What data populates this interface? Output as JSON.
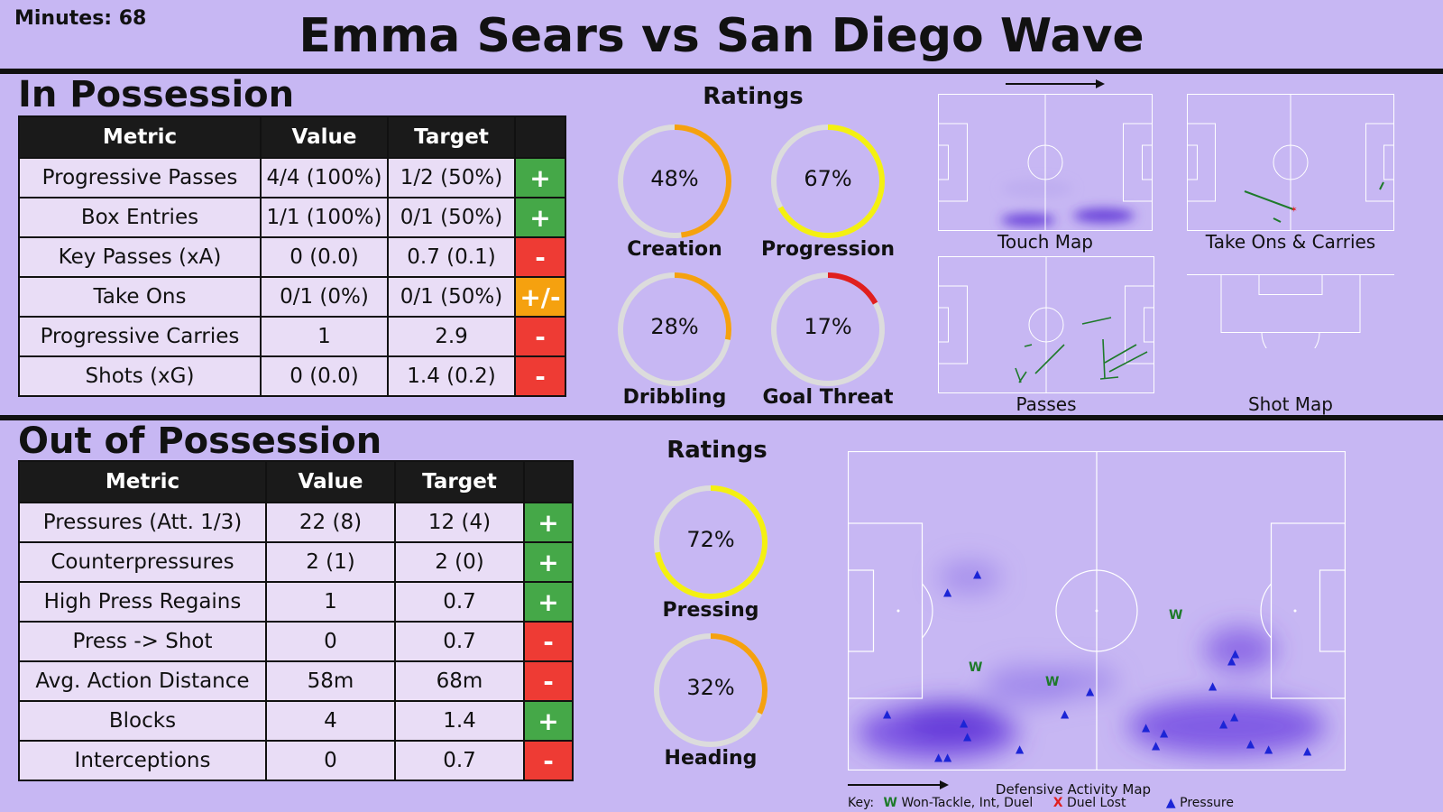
{
  "header": {
    "minutes": "Minutes: 68",
    "title": "Emma Sears vs San Diego Wave"
  },
  "in_possession": {
    "title": "In Possession",
    "columns": [
      "Metric",
      "Value",
      "Target",
      ""
    ],
    "rows": [
      {
        "metric": "Progressive Passes",
        "value": "4/4 (100%)",
        "target": "1/2 (50%)",
        "mark": "+"
      },
      {
        "metric": "Box Entries",
        "value": "1/1 (100%)",
        "target": "0/1 (50%)",
        "mark": "+"
      },
      {
        "metric": "Key Passes (xA)",
        "value": "0 (0.0)",
        "target": "0.7 (0.1)",
        "mark": "-"
      },
      {
        "metric": "Take Ons",
        "value": "0/1 (0%)",
        "target": "0/1 (50%)",
        "mark": "+/-"
      },
      {
        "metric": "Progressive Carries",
        "value": "1",
        "target": "2.9",
        "mark": "-"
      },
      {
        "metric": "Shots (xG)",
        "value": "0 (0.0)",
        "target": "1.4 (0.2)",
        "mark": "-"
      }
    ],
    "ratings_title": "Ratings",
    "ratings": [
      {
        "label": "Creation",
        "value_text": "48%",
        "value": 48,
        "color": "#f5a10f"
      },
      {
        "label": "Progression",
        "value_text": "67%",
        "value": 67,
        "color": "#f4f011"
      },
      {
        "label": "Dribbling",
        "value_text": "28%",
        "value": 28,
        "color": "#f5a10f"
      },
      {
        "label": "Goal Threat",
        "value_text": "17%",
        "value": 17,
        "color": "#e01f1f"
      }
    ],
    "maps": {
      "touch": "Touch Map",
      "take_ons": "Take Ons & Carries",
      "passes": "Passes",
      "shots": "Shot Map"
    }
  },
  "out_of_possession": {
    "title": "Out of Possession",
    "columns": [
      "Metric",
      "Value",
      "Target",
      ""
    ],
    "rows": [
      {
        "metric": "Pressures (Att. 1/3)",
        "value": "22 (8)",
        "target": "12 (4)",
        "mark": "+"
      },
      {
        "metric": "Counterpressures",
        "value": "2 (1)",
        "target": "2 (0)",
        "mark": "+"
      },
      {
        "metric": "High Press Regains",
        "value": "1",
        "target": "0.7",
        "mark": "+"
      },
      {
        "metric": "Press -> Shot",
        "value": "0",
        "target": "0.7",
        "mark": "-"
      },
      {
        "metric": "Avg. Action Distance",
        "value": "58m",
        "target": "68m",
        "mark": "-"
      },
      {
        "metric": "Blocks",
        "value": "4",
        "target": "1.4",
        "mark": "+"
      },
      {
        "metric": "Interceptions",
        "value": "0",
        "target": "0.7",
        "mark": "-"
      }
    ],
    "ratings_title": "Ratings",
    "ratings": [
      {
        "label": "Pressing",
        "value_text": "72%",
        "value": 72,
        "color": "#f4f011"
      },
      {
        "label": "Heading",
        "value_text": "32%",
        "value": 32,
        "color": "#f5a10f"
      }
    ],
    "map_label": "Defensive Activity Map",
    "key": {
      "label": "Key:",
      "w_symbol": "W",
      "w_text": "Won-Tackle, Int, Duel",
      "x_symbol": "X",
      "x_text": "Duel Lost",
      "tri_symbol": "▲",
      "tri_text": "Pressure"
    }
  },
  "colors": {
    "background": "#c7b7f3",
    "plus": "#45a848",
    "minus": "#ee3b34",
    "neutral": "#f5a10f",
    "pass_line": "#1e7a2a",
    "pressure": "#1c25d6"
  }
}
